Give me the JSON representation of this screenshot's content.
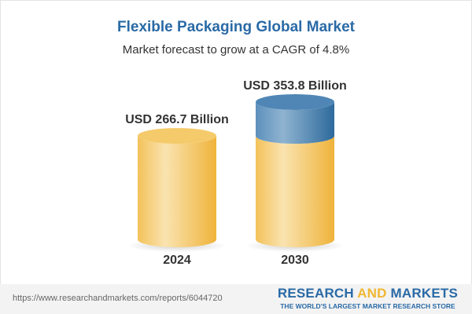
{
  "title": "Flexible Packaging Global Market",
  "subtitle": "Market forecast to grow at a CAGR of 4.8%",
  "footer": {
    "url": "https://www.researchandmarkets.com/reports/6044720",
    "logo_part1": "RESEARCH ",
    "logo_part2": "AND",
    "logo_part3": " MARKETS",
    "logo_tagline": "THE WORLD'S LARGEST MARKET RESEARCH STORE"
  },
  "chart_data": {
    "type": "bar",
    "style": "3d-cylinder",
    "title": "Flexible Packaging Global Market",
    "subtitle": "Market forecast to grow at a CAGR of 4.8%",
    "categories": [
      "2024",
      "2030"
    ],
    "values": [
      266.7,
      353.8
    ],
    "data_labels": [
      "USD 266.7 Billion",
      "USD 353.8 Billion"
    ],
    "unit": "USD Billion",
    "colors": {
      "base": "#f3c04f",
      "growth": "#4f86b5"
    },
    "grid": false
  }
}
